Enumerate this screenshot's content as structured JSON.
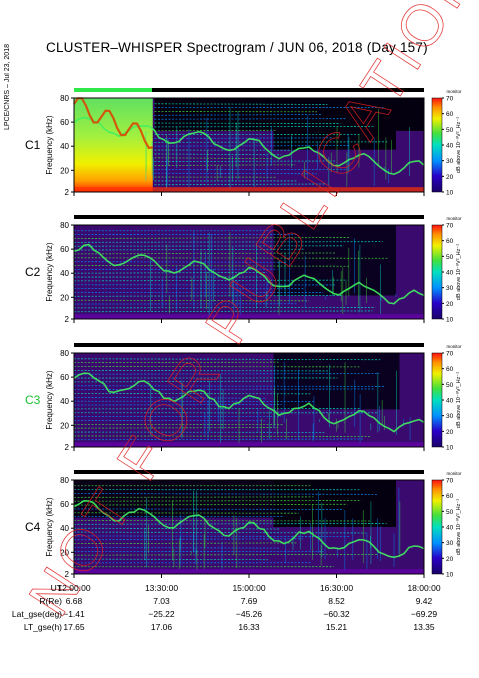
{
  "title": "CLUSTER–WHISPER Spectrogram / JUN 06, 2018 (Day 157)",
  "side_label": "LPCE/CNRS – Jul 23, 2018",
  "watermark": "NOT FOR PUBLICATION",
  "chart_data": [
    {
      "type": "heatmap",
      "panel": "C1",
      "ylabel": "Frequency (kHz)",
      "yticks": [
        2,
        20,
        40,
        60,
        80
      ],
      "ylim": [
        2,
        80
      ],
      "colorbar": {
        "label": "dB above 10⁻⁸V²_Hz⁻¹",
        "unit_label": "monitor",
        "ticks": [
          10,
          20,
          30,
          40,
          50,
          60,
          70
        ],
        "range": [
          10,
          70
        ]
      }
    },
    {
      "type": "heatmap",
      "panel": "C2",
      "ylabel": "Frequency (kHz)",
      "yticks": [
        2,
        20,
        40,
        60,
        80
      ],
      "ylim": [
        2,
        80
      ],
      "colorbar": {
        "label": "dB above 10⁻⁸V²_Hz⁻¹",
        "unit_label": "monitor",
        "ticks": [
          10,
          20,
          30,
          40,
          50,
          60,
          70
        ],
        "range": [
          10,
          70
        ]
      }
    },
    {
      "type": "heatmap",
      "panel": "C3",
      "ylabel": "Frequency (kHz)",
      "yticks": [
        2,
        20,
        40,
        60,
        80
      ],
      "ylim": [
        2,
        80
      ],
      "colorbar": {
        "label": "dB above 10⁻⁸V²_Hz⁻¹",
        "unit_label": "monitor",
        "ticks": [
          10,
          20,
          30,
          40,
          50,
          60,
          70
        ],
        "range": [
          10,
          70
        ]
      }
    },
    {
      "type": "heatmap",
      "panel": "C4",
      "ylabel": "Frequency (kHz)",
      "yticks": [
        2,
        20,
        40,
        60,
        80
      ],
      "ylim": [
        2,
        80
      ],
      "colorbar": {
        "label": "dB above 10⁻⁸V²_Hz⁻¹",
        "unit_label": "monitor",
        "ticks": [
          10,
          20,
          30,
          40,
          50,
          60,
          70
        ],
        "range": [
          10,
          70
        ]
      }
    }
  ],
  "panel_label_colors": {
    "C1": "#000000",
    "C2": "#000000",
    "C3": "#1fbf2f",
    "C4": "#000000"
  },
  "ephemeris": {
    "rows": [
      {
        "label": "UT",
        "values": [
          "12:00:00",
          "13:30:00",
          "15:00:00",
          "16:30:00",
          "18:00:00"
        ]
      },
      {
        "label": "R(Re)",
        "values": [
          "6.68",
          "7.03",
          "7.69",
          "8.52",
          "9.42"
        ]
      },
      {
        "label": "Lat_gse(deg)",
        "values": [
          "−1.41",
          "−25.22",
          "−45.26",
          "−60.32",
          "−69.29"
        ]
      },
      {
        "label": "LT_gse(h)",
        "values": [
          "17.65",
          "17.06",
          "16.33",
          "15.21",
          "13.35"
        ]
      }
    ]
  },
  "colors": {
    "watermark": "#e02020",
    "cb_low": "#1a0066",
    "cb_high": "#ff1a1a"
  }
}
